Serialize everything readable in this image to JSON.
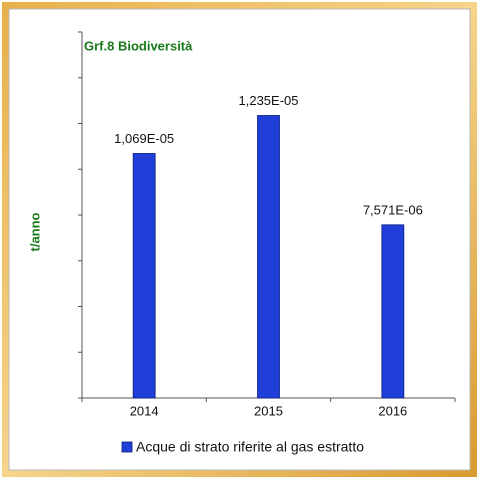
{
  "chart_data": {
    "type": "bar",
    "title": "Grf.8 Biodiversità",
    "y_label": "t/anno",
    "categories": [
      "2014",
      "2015",
      "2016"
    ],
    "series": [
      {
        "name": "Acque di strato riferite al gas estratto",
        "color": "#1f3fd8",
        "values": [
          1.069e-05,
          1.235e-05,
          7.571e-06
        ],
        "value_labels": [
          "1,069E-05",
          "1,235E-05",
          "7,571E-06"
        ]
      }
    ],
    "ylim": [
      0,
      1.6e-05
    ],
    "yticks": [
      0,
      2e-06,
      4e-06,
      6e-06,
      8e-06,
      1e-05,
      1.2e-05,
      1.4e-05,
      1.6e-05
    ],
    "legend": "bottom"
  }
}
